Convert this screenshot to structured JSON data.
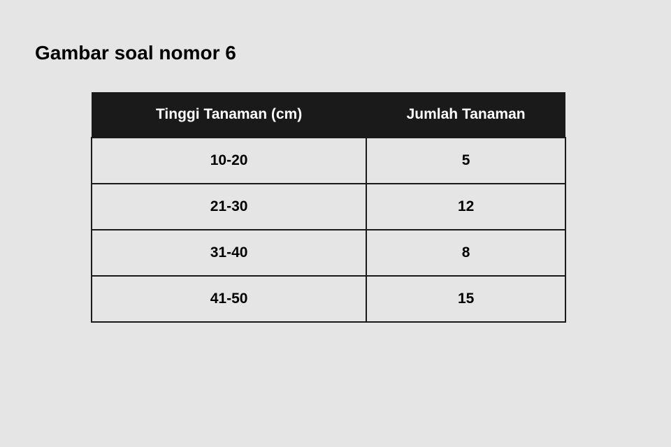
{
  "title": "Gambar soal nomor 6",
  "table": {
    "type": "table",
    "columns": [
      "Tinggi Tanaman (cm)",
      "Jumlah Tanaman"
    ],
    "rows": [
      [
        "10-20",
        "5"
      ],
      [
        "21-30",
        "12"
      ],
      [
        "31-40",
        "8"
      ],
      [
        "41-50",
        "15"
      ]
    ],
    "header_bg_color": "#1a1a1a",
    "header_text_color": "#ffffff",
    "cell_bg_color": "#e5e5e5",
    "cell_text_color": "#000000",
    "border_color": "#1a1a1a",
    "header_fontsize": 21,
    "cell_fontsize": 21,
    "font_weight": 700,
    "col_widths_pct": [
      58,
      42
    ]
  },
  "page_bg_color": "#e5e5e5",
  "title_fontsize": 28,
  "title_color": "#000000"
}
